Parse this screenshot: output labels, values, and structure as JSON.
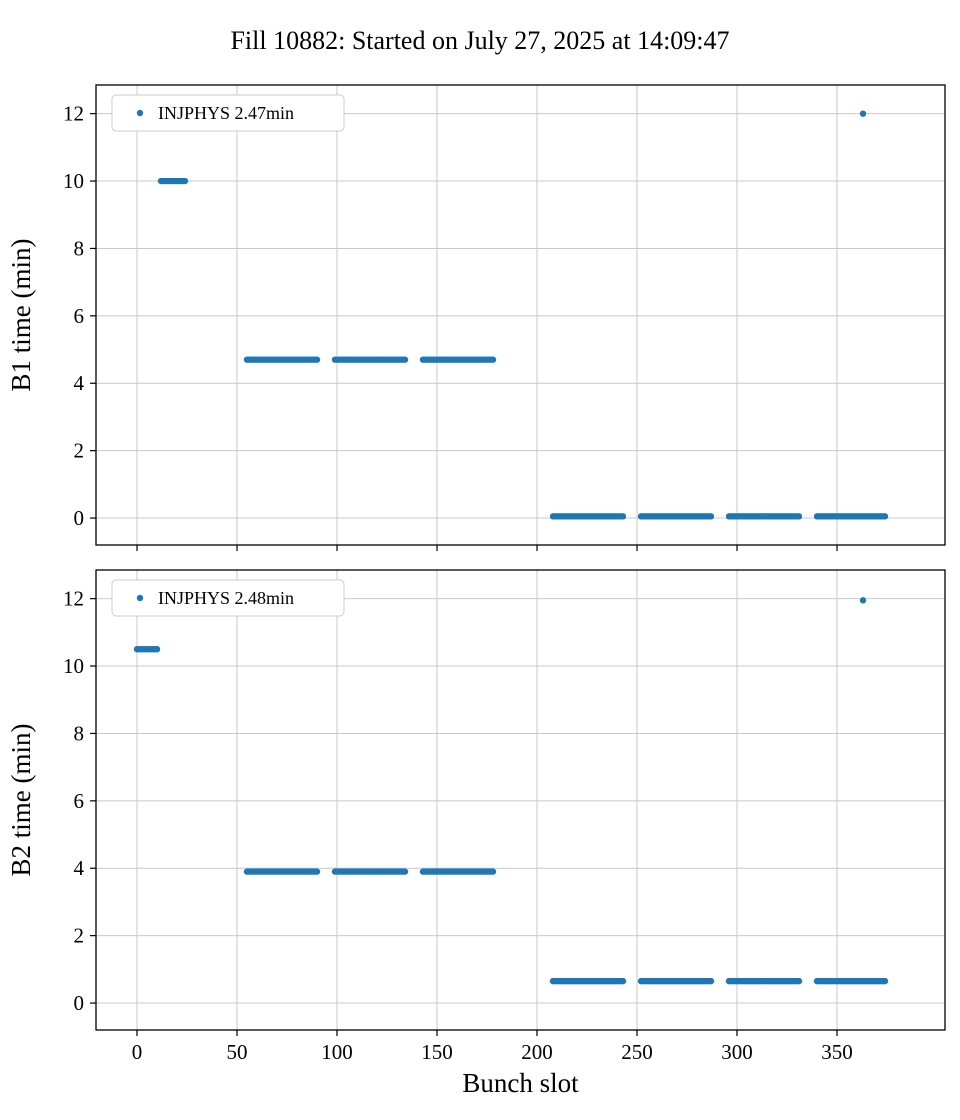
{
  "title": "Fill 10882: Started on July 27, 2025 at 14:09:47",
  "chart_data": [
    {
      "type": "scatter",
      "ylabel": "B1 time (min)",
      "xlabel": "",
      "legend": "INJPHYS 2.47min",
      "marker_color": "#1f77b4",
      "grid": true,
      "legend_position": "upper left",
      "xlim": [
        -20.5,
        404
      ],
      "ylim": [
        -0.8,
        12.85
      ],
      "xticks": [
        0,
        50,
        100,
        150,
        200,
        250,
        300,
        350
      ],
      "yticks": [
        0,
        2,
        4,
        6,
        8,
        10,
        12
      ],
      "segments": [
        {
          "x_start": 12,
          "x_end": 24,
          "y": 10.0
        },
        {
          "x_start": 55,
          "x_end": 90,
          "y": 4.7
        },
        {
          "x_start": 99,
          "x_end": 134,
          "y": 4.7
        },
        {
          "x_start": 143,
          "x_end": 178,
          "y": 4.7
        },
        {
          "x_start": 208,
          "x_end": 243,
          "y": 0.05
        },
        {
          "x_start": 252,
          "x_end": 287,
          "y": 0.05
        },
        {
          "x_start": 296,
          "x_end": 331,
          "y": 0.05
        },
        {
          "x_start": 340,
          "x_end": 374,
          "y": 0.05
        }
      ],
      "points": [
        {
          "x": 363,
          "y": 12.0
        }
      ]
    },
    {
      "type": "scatter",
      "ylabel": "B2 time (min)",
      "xlabel": "Bunch slot",
      "legend": "INJPHYS 2.48min",
      "marker_color": "#1f77b4",
      "grid": true,
      "legend_position": "upper left",
      "xlim": [
        -20.5,
        404
      ],
      "ylim": [
        -0.8,
        12.85
      ],
      "xticks": [
        0,
        50,
        100,
        150,
        200,
        250,
        300,
        350
      ],
      "yticks": [
        0,
        2,
        4,
        6,
        8,
        10,
        12
      ],
      "segments": [
        {
          "x_start": 0,
          "x_end": 10,
          "y": 10.5
        },
        {
          "x_start": 55,
          "x_end": 90,
          "y": 3.9
        },
        {
          "x_start": 99,
          "x_end": 134,
          "y": 3.9
        },
        {
          "x_start": 143,
          "x_end": 178,
          "y": 3.9
        },
        {
          "x_start": 208,
          "x_end": 243,
          "y": 0.65
        },
        {
          "x_start": 252,
          "x_end": 287,
          "y": 0.65
        },
        {
          "x_start": 296,
          "x_end": 331,
          "y": 0.65
        },
        {
          "x_start": 340,
          "x_end": 374,
          "y": 0.65
        }
      ],
      "points": [
        {
          "x": 363,
          "y": 11.95
        }
      ]
    }
  ]
}
